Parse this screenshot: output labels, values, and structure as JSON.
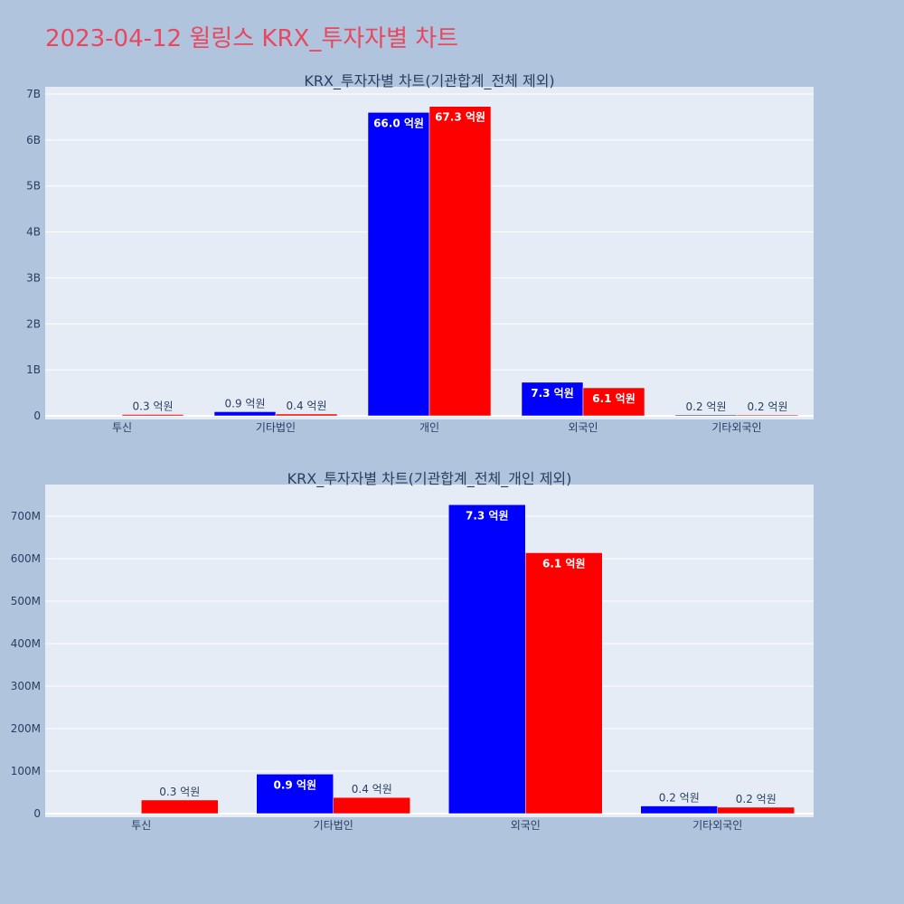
{
  "page_title": "2023-04-12 윌링스 KRX_투자자별 차트",
  "colors": {
    "background": "#b0c4de",
    "plot_bg": "#e5ecf6",
    "title": "#e8485f",
    "buy": "#0000ff",
    "sell": "#ff0000",
    "text": "#2a3f5f"
  },
  "chart_data": [
    {
      "type": "bar",
      "title": "KRX_투자자별 차트(기관합계_전체 제외)",
      "categories": [
        "투신",
        "기타법인",
        "개인",
        "외국인",
        "기타외국인"
      ],
      "series": [
        {
          "values": [
            0,
            90000000,
            6600000000,
            730000000,
            20000000
          ],
          "labels": [
            "",
            "0.9 억원",
            "66.0 억원",
            "7.3 억원",
            "0.2 억원"
          ]
        },
        {
          "values": [
            30000000,
            40000000,
            6730000000,
            610000000,
            20000000
          ],
          "labels": [
            "0.3 억원",
            "0.4 억원",
            "67.3 억원",
            "6.1 억원",
            "0.2 억원"
          ]
        }
      ],
      "ylim": [
        0,
        7000000000
      ],
      "ytick_values": [
        0,
        1000000000,
        2000000000,
        3000000000,
        4000000000,
        5000000000,
        6000000000,
        7000000000
      ],
      "ytick_labels": [
        "0",
        "1B",
        "2B",
        "3B",
        "4B",
        "5B",
        "6B",
        "7B"
      ],
      "grid": true
    },
    {
      "type": "bar",
      "title": "KRX_투자자별 차트(기관합계_전체_개인 제외)",
      "categories": [
        "투신",
        "기타법인",
        "외국인",
        "기타외국인"
      ],
      "series": [
        {
          "values": [
            0,
            93000000,
            727000000,
            18000000
          ],
          "labels": [
            "",
            "0.9 억원",
            "7.3 억원",
            "0.2 억원"
          ]
        },
        {
          "values": [
            32000000,
            38000000,
            614000000,
            15000000
          ],
          "labels": [
            "0.3 억원",
            "0.4 억원",
            "6.1 억원",
            "0.2 억원"
          ]
        }
      ],
      "ylim": [
        0,
        700000000
      ],
      "ytick_values": [
        0,
        100000000,
        200000000,
        300000000,
        400000000,
        500000000,
        600000000,
        700000000
      ],
      "ytick_labels": [
        "0",
        "100M",
        "200M",
        "300M",
        "400M",
        "500M",
        "600M",
        "700M"
      ],
      "grid": true
    }
  ]
}
